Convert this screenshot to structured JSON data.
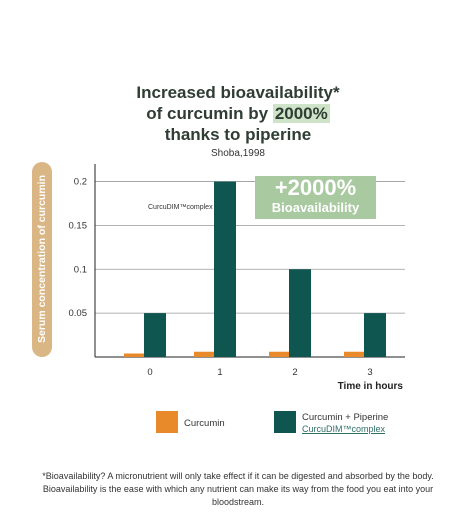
{
  "title_line1": "Increased bioavailability*",
  "title_line2_pre": "of curcumin by ",
  "title_line2_hl": "2000%",
  "title_line3": "thanks to piperine",
  "subtitle": "Shoba,1998",
  "badge": {
    "big": "+2000%",
    "small": "Bioavailability"
  },
  "annotation": "CurcuDIM™complex",
  "legend": {
    "curcumin": "Curcumin",
    "combo": "Curcumin + Piperine",
    "combo_sub": "CurcuDIM™complex"
  },
  "footnote": "*Bioavailability? A micronutrient will only take effect if it can be digested and absorbed by the body. Bioavailability is the ease with which any nutrient can make its way from the food you eat into your bloodstream.",
  "colors": {
    "curcumin": "#e8892a",
    "combo": "#0f5550",
    "badge": "#a9c9a0",
    "pill": "#d9b684"
  },
  "chart_data": {
    "type": "bar",
    "categories": [
      "0",
      "1",
      "2",
      "3"
    ],
    "series": [
      {
        "name": "Curcumin",
        "values": [
          0.004,
          0.006,
          0.006,
          0.006
        ]
      },
      {
        "name": "Curcumin + Piperine",
        "values": [
          0.05,
          0.2,
          0.1,
          0.05
        ]
      }
    ],
    "xlabel": "Time in hours",
    "ylabel": "Serum concentration of curcumin",
    "yticks": [
      "0.05",
      "0.1",
      "0.15",
      "0.2"
    ],
    "ylim": [
      0,
      0.22
    ],
    "grid": true,
    "legend": "bottom"
  }
}
